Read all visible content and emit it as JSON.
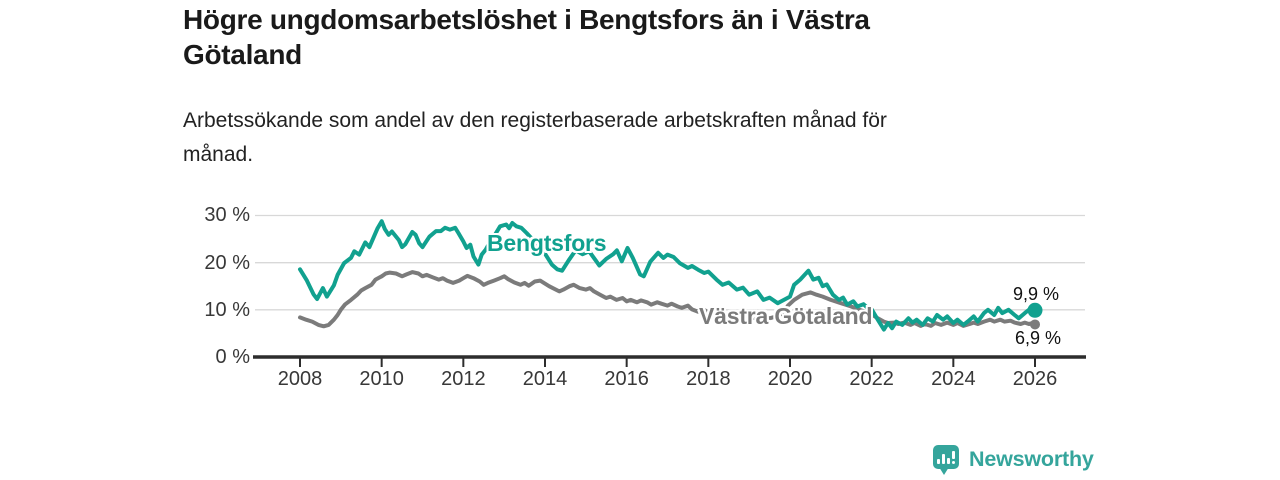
{
  "header": {
    "title": "Högre ungdomsarbetslöshet i Bengtsfors än i Västra\nGötaland",
    "subtitle": "Arbetssökande som andel av den registerbaserade arbetskraften månad för\nmånad."
  },
  "footer": {
    "brand": "Newsworthy",
    "brand_color": "#35a59c"
  },
  "chart_data": {
    "type": "line",
    "title": "Högre ungdomsarbetslöshet i Bengtsfors än i Västra Götaland",
    "subtitle": "Arbetssökande som andel av den registerbaserade arbetskraften månad för månad.",
    "grid": "horizontal-only",
    "legend_position": "inline-labels-on-lines",
    "colors": {
      "grid": "#d8d8d8",
      "axis": "#2d2d2d",
      "tick_text": "#383838"
    },
    "x_axis": {
      "ticks": [
        2008,
        2010,
        2012,
        2014,
        2016,
        2018,
        2020,
        2022,
        2024,
        2026
      ],
      "range": [
        2008,
        2027.2
      ]
    },
    "y_axis": {
      "unit": "%",
      "range": [
        0,
        32
      ],
      "ticks": [
        {
          "value": 0,
          "label": "0 %"
        },
        {
          "value": 10,
          "label": "10 %"
        },
        {
          "value": 20,
          "label": "20 %"
        },
        {
          "value": 30,
          "label": "30 %"
        }
      ]
    },
    "series": [
      {
        "name": "Bengtsfors",
        "color": "#11a18f",
        "end_label": "9,9 %",
        "end_dot_radius": 7.5,
        "points": [
          [
            2008.0,
            18.6
          ],
          [
            2008.17,
            16.2
          ],
          [
            2008.33,
            13.3
          ],
          [
            2008.42,
            12.3
          ],
          [
            2008.56,
            14.6
          ],
          [
            2008.66,
            12.8
          ],
          [
            2008.83,
            15.2
          ],
          [
            2008.92,
            17.4
          ],
          [
            2009.08,
            19.9
          ],
          [
            2009.25,
            21.0
          ],
          [
            2009.33,
            22.4
          ],
          [
            2009.45,
            21.7
          ],
          [
            2009.6,
            24.3
          ],
          [
            2009.7,
            23.3
          ],
          [
            2009.9,
            27.3
          ],
          [
            2010.0,
            28.8
          ],
          [
            2010.08,
            27.1
          ],
          [
            2010.17,
            25.9
          ],
          [
            2010.25,
            26.6
          ],
          [
            2010.42,
            24.8
          ],
          [
            2010.5,
            23.3
          ],
          [
            2010.58,
            23.9
          ],
          [
            2010.75,
            26.5
          ],
          [
            2010.83,
            25.9
          ],
          [
            2010.92,
            24.1
          ],
          [
            2011.0,
            23.3
          ],
          [
            2011.17,
            25.5
          ],
          [
            2011.33,
            26.7
          ],
          [
            2011.45,
            26.7
          ],
          [
            2011.55,
            27.4
          ],
          [
            2011.67,
            27.0
          ],
          [
            2011.8,
            27.4
          ],
          [
            2011.88,
            26.3
          ],
          [
            2012.0,
            24.5
          ],
          [
            2012.08,
            23.1
          ],
          [
            2012.17,
            23.8
          ],
          [
            2012.25,
            21.3
          ],
          [
            2012.37,
            19.6
          ],
          [
            2012.45,
            21.7
          ],
          [
            2012.55,
            22.8
          ],
          [
            2012.66,
            24.5
          ],
          [
            2012.78,
            26.0
          ],
          [
            2012.9,
            27.7
          ],
          [
            2013.05,
            28.1
          ],
          [
            2013.12,
            27.3
          ],
          [
            2013.2,
            28.4
          ],
          [
            2013.3,
            27.7
          ],
          [
            2013.42,
            27.4
          ],
          [
            2013.55,
            26.3
          ],
          [
            2013.7,
            24.9
          ],
          [
            2013.85,
            23.4
          ],
          [
            2014.0,
            21.9
          ],
          [
            2014.17,
            19.6
          ],
          [
            2014.3,
            18.6
          ],
          [
            2014.42,
            18.3
          ],
          [
            2014.58,
            20.5
          ],
          [
            2014.75,
            22.6
          ],
          [
            2014.92,
            21.8
          ],
          [
            2015.08,
            22.4
          ],
          [
            2015.25,
            20.4
          ],
          [
            2015.33,
            19.4
          ],
          [
            2015.5,
            20.8
          ],
          [
            2015.67,
            21.8
          ],
          [
            2015.76,
            22.6
          ],
          [
            2015.88,
            20.3
          ],
          [
            2016.02,
            23.1
          ],
          [
            2016.15,
            21.0
          ],
          [
            2016.33,
            17.5
          ],
          [
            2016.42,
            17.1
          ],
          [
            2016.58,
            20.2
          ],
          [
            2016.77,
            22.1
          ],
          [
            2016.9,
            21.0
          ],
          [
            2017.0,
            21.7
          ],
          [
            2017.15,
            21.2
          ],
          [
            2017.3,
            19.9
          ],
          [
            2017.5,
            18.9
          ],
          [
            2017.6,
            19.3
          ],
          [
            2017.75,
            18.5
          ],
          [
            2017.9,
            17.8
          ],
          [
            2018.0,
            18.1
          ],
          [
            2018.2,
            16.4
          ],
          [
            2018.35,
            15.3
          ],
          [
            2018.5,
            15.8
          ],
          [
            2018.7,
            14.3
          ],
          [
            2018.85,
            14.7
          ],
          [
            2019.0,
            13.2
          ],
          [
            2019.2,
            13.9
          ],
          [
            2019.35,
            12.1
          ],
          [
            2019.5,
            12.6
          ],
          [
            2019.7,
            11.4
          ],
          [
            2019.85,
            12.1
          ],
          [
            2020.0,
            12.8
          ],
          [
            2020.1,
            15.3
          ],
          [
            2020.25,
            16.4
          ],
          [
            2020.45,
            18.3
          ],
          [
            2020.57,
            16.4
          ],
          [
            2020.7,
            16.8
          ],
          [
            2020.8,
            15.0
          ],
          [
            2020.9,
            15.4
          ],
          [
            2021.05,
            13.2
          ],
          [
            2021.2,
            12.1
          ],
          [
            2021.3,
            12.6
          ],
          [
            2021.4,
            11.1
          ],
          [
            2021.55,
            11.8
          ],
          [
            2021.65,
            10.7
          ],
          [
            2021.8,
            11.2
          ],
          [
            2021.9,
            10.4
          ],
          [
            2022.0,
            10.1
          ],
          [
            2022.15,
            7.9
          ],
          [
            2022.3,
            5.8
          ],
          [
            2022.4,
            7.2
          ],
          [
            2022.5,
            6.1
          ],
          [
            2022.6,
            7.5
          ],
          [
            2022.75,
            6.8
          ],
          [
            2022.9,
            8.2
          ],
          [
            2023.0,
            7.3
          ],
          [
            2023.1,
            7.9
          ],
          [
            2023.25,
            6.8
          ],
          [
            2023.37,
            8.2
          ],
          [
            2023.5,
            7.5
          ],
          [
            2023.6,
            8.9
          ],
          [
            2023.75,
            7.9
          ],
          [
            2023.85,
            8.6
          ],
          [
            2024.0,
            7.2
          ],
          [
            2024.1,
            7.9
          ],
          [
            2024.25,
            6.8
          ],
          [
            2024.35,
            7.5
          ],
          [
            2024.5,
            8.6
          ],
          [
            2024.6,
            7.5
          ],
          [
            2024.75,
            9.3
          ],
          [
            2024.85,
            10.0
          ],
          [
            2025.0,
            8.9
          ],
          [
            2025.1,
            10.4
          ],
          [
            2025.2,
            9.3
          ],
          [
            2025.35,
            10.0
          ],
          [
            2025.5,
            8.9
          ],
          [
            2025.6,
            8.2
          ],
          [
            2025.75,
            9.3
          ],
          [
            2025.85,
            10.0
          ],
          [
            2025.95,
            9.5
          ],
          [
            2026.0,
            9.9
          ]
        ]
      },
      {
        "name": "Västra Götaland",
        "color": "#7b7b7b",
        "end_label": "6,9 %",
        "end_dot_radius": 5,
        "points": [
          [
            2008.0,
            8.4
          ],
          [
            2008.15,
            7.9
          ],
          [
            2008.3,
            7.5
          ],
          [
            2008.45,
            6.8
          ],
          [
            2008.58,
            6.5
          ],
          [
            2008.7,
            6.8
          ],
          [
            2008.83,
            7.9
          ],
          [
            2008.92,
            8.9
          ],
          [
            2009.0,
            10.0
          ],
          [
            2009.1,
            11.1
          ],
          [
            2009.25,
            12.1
          ],
          [
            2009.4,
            13.2
          ],
          [
            2009.5,
            14.1
          ],
          [
            2009.6,
            14.6
          ],
          [
            2009.75,
            15.3
          ],
          [
            2009.85,
            16.4
          ],
          [
            2010.0,
            17.1
          ],
          [
            2010.1,
            17.7
          ],
          [
            2010.2,
            17.9
          ],
          [
            2010.35,
            17.7
          ],
          [
            2010.5,
            17.1
          ],
          [
            2010.6,
            17.5
          ],
          [
            2010.75,
            18.0
          ],
          [
            2010.9,
            17.7
          ],
          [
            2011.0,
            17.1
          ],
          [
            2011.1,
            17.4
          ],
          [
            2011.25,
            16.9
          ],
          [
            2011.4,
            16.4
          ],
          [
            2011.5,
            16.7
          ],
          [
            2011.6,
            16.2
          ],
          [
            2011.75,
            15.7
          ],
          [
            2011.9,
            16.2
          ],
          [
            2012.0,
            16.7
          ],
          [
            2012.1,
            17.2
          ],
          [
            2012.25,
            16.7
          ],
          [
            2012.4,
            16.0
          ],
          [
            2012.5,
            15.3
          ],
          [
            2012.6,
            15.7
          ],
          [
            2012.75,
            16.2
          ],
          [
            2012.9,
            16.7
          ],
          [
            2013.0,
            17.1
          ],
          [
            2013.1,
            16.5
          ],
          [
            2013.25,
            15.8
          ],
          [
            2013.4,
            15.3
          ],
          [
            2013.5,
            15.7
          ],
          [
            2013.6,
            15.1
          ],
          [
            2013.75,
            16.0
          ],
          [
            2013.88,
            16.2
          ],
          [
            2014.1,
            15.0
          ],
          [
            2014.35,
            13.9
          ],
          [
            2014.45,
            14.3
          ],
          [
            2014.6,
            15.0
          ],
          [
            2014.7,
            15.3
          ],
          [
            2014.85,
            14.6
          ],
          [
            2015.0,
            14.3
          ],
          [
            2015.1,
            14.6
          ],
          [
            2015.2,
            13.9
          ],
          [
            2015.35,
            13.2
          ],
          [
            2015.5,
            12.5
          ],
          [
            2015.6,
            12.8
          ],
          [
            2015.75,
            12.1
          ],
          [
            2015.9,
            12.5
          ],
          [
            2016.0,
            11.8
          ],
          [
            2016.1,
            12.1
          ],
          [
            2016.25,
            11.6
          ],
          [
            2016.35,
            12.0
          ],
          [
            2016.5,
            11.6
          ],
          [
            2016.6,
            11.1
          ],
          [
            2016.75,
            11.6
          ],
          [
            2016.85,
            11.3
          ],
          [
            2017.0,
            10.9
          ],
          [
            2017.1,
            11.3
          ],
          [
            2017.25,
            10.7
          ],
          [
            2017.35,
            10.4
          ],
          [
            2017.5,
            10.9
          ],
          [
            2017.6,
            10.1
          ],
          [
            2017.75,
            9.6
          ],
          [
            2017.9,
            10.0
          ],
          [
            2018.0,
            9.4
          ],
          [
            2018.15,
            8.9
          ],
          [
            2018.3,
            8.5
          ],
          [
            2018.5,
            8.7
          ],
          [
            2018.7,
            8.3
          ],
          [
            2018.9,
            8.6
          ],
          [
            2019.1,
            8.3
          ],
          [
            2019.3,
            8.5
          ],
          [
            2019.5,
            8.2
          ],
          [
            2019.7,
            8.7
          ],
          [
            2019.85,
            9.5
          ],
          [
            2019.95,
            10.9
          ],
          [
            2020.1,
            12.1
          ],
          [
            2020.3,
            13.2
          ],
          [
            2020.5,
            13.7
          ],
          [
            2020.65,
            13.2
          ],
          [
            2020.8,
            12.8
          ],
          [
            2021.0,
            12.1
          ],
          [
            2021.25,
            11.4
          ],
          [
            2021.5,
            10.7
          ],
          [
            2021.7,
            10.0
          ],
          [
            2021.95,
            9.3
          ],
          [
            2022.15,
            8.2
          ],
          [
            2022.3,
            7.5
          ],
          [
            2022.4,
            7.2
          ],
          [
            2022.55,
            7.3
          ],
          [
            2022.65,
            7.0
          ],
          [
            2022.8,
            7.3
          ],
          [
            2022.95,
            6.8
          ],
          [
            2023.05,
            7.2
          ],
          [
            2023.2,
            6.6
          ],
          [
            2023.3,
            7.0
          ],
          [
            2023.45,
            6.6
          ],
          [
            2023.55,
            7.2
          ],
          [
            2023.7,
            6.8
          ],
          [
            2023.85,
            7.3
          ],
          [
            2024.0,
            6.8
          ],
          [
            2024.1,
            7.2
          ],
          [
            2024.25,
            6.6
          ],
          [
            2024.4,
            7.0
          ],
          [
            2024.5,
            7.3
          ],
          [
            2024.6,
            7.0
          ],
          [
            2024.75,
            7.5
          ],
          [
            2024.9,
            7.9
          ],
          [
            2025.0,
            7.5
          ],
          [
            2025.15,
            7.9
          ],
          [
            2025.25,
            7.5
          ],
          [
            2025.4,
            7.7
          ],
          [
            2025.5,
            7.3
          ],
          [
            2025.65,
            7.0
          ],
          [
            2025.75,
            7.3
          ],
          [
            2025.85,
            7.0
          ],
          [
            2025.95,
            7.2
          ],
          [
            2026.0,
            6.9
          ]
        ]
      }
    ]
  }
}
